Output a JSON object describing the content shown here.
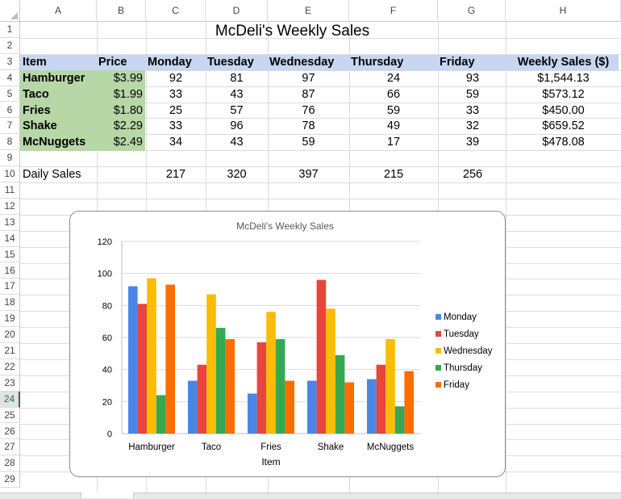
{
  "spreadsheet": {
    "columns": [
      "A",
      "B",
      "C",
      "D",
      "E",
      "F",
      "G",
      "H"
    ],
    "rows": [
      "1",
      "2",
      "3",
      "4",
      "5",
      "6",
      "7",
      "8",
      "9",
      "10",
      "11",
      "12",
      "13",
      "14",
      "15",
      "16",
      "17",
      "18",
      "19",
      "20",
      "21",
      "22",
      "23",
      "24",
      "25",
      "26",
      "27",
      "28",
      "29"
    ],
    "selected_row": "24",
    "title": "McDeli's Weekly Sales",
    "headers": [
      "Item",
      "Price",
      "Monday",
      "Tuesday",
      "Wednesday",
      "Thursday",
      "Friday",
      "Weekly Sales ($)"
    ],
    "data_rows": [
      {
        "item": "Hamburger",
        "price": "$3.99",
        "days": [
          "92",
          "81",
          "97",
          "24",
          "93"
        ],
        "weekly": "$1,544.13"
      },
      {
        "item": "Taco",
        "price": "$1.99",
        "days": [
          "33",
          "43",
          "87",
          "66",
          "59"
        ],
        "weekly": "$573.12"
      },
      {
        "item": "Fries",
        "price": "$1.80",
        "days": [
          "25",
          "57",
          "76",
          "59",
          "33"
        ],
        "weekly": "$450.00"
      },
      {
        "item": "Shake",
        "price": "$2.29",
        "days": [
          "33",
          "96",
          "78",
          "49",
          "32"
        ],
        "weekly": "$659.52"
      },
      {
        "item": "McNuggets",
        "price": "$2.49",
        "days": [
          "34",
          "43",
          "59",
          "17",
          "39"
        ],
        "weekly": "$478.08"
      }
    ],
    "daily_label": "Daily Sales",
    "daily_totals": [
      "217",
      "320",
      "397",
      "215",
      "256"
    ]
  },
  "chart_data": {
    "type": "bar",
    "title": "McDeli's Weekly Sales",
    "xlabel": "Item",
    "ylabel": "",
    "categories": [
      "Hamburger",
      "Taco",
      "Fries",
      "Shake",
      "McNuggets"
    ],
    "ylim": [
      0,
      120
    ],
    "yticks": [
      0,
      20,
      40,
      60,
      80,
      100,
      120
    ],
    "grid": true,
    "legend_position": "right",
    "series": [
      {
        "name": "Monday",
        "color": "#4a86e8",
        "values": [
          92,
          33,
          25,
          33,
          34
        ]
      },
      {
        "name": "Tuesday",
        "color": "#e8453c",
        "values": [
          81,
          43,
          57,
          96,
          43
        ]
      },
      {
        "name": "Wednesday",
        "color": "#fbbc04",
        "values": [
          97,
          87,
          76,
          78,
          59
        ]
      },
      {
        "name": "Thursday",
        "color": "#34a853",
        "values": [
          24,
          66,
          59,
          49,
          17
        ]
      },
      {
        "name": "Friday",
        "color": "#ff6d01",
        "values": [
          93,
          59,
          33,
          32,
          39
        ]
      }
    ]
  }
}
